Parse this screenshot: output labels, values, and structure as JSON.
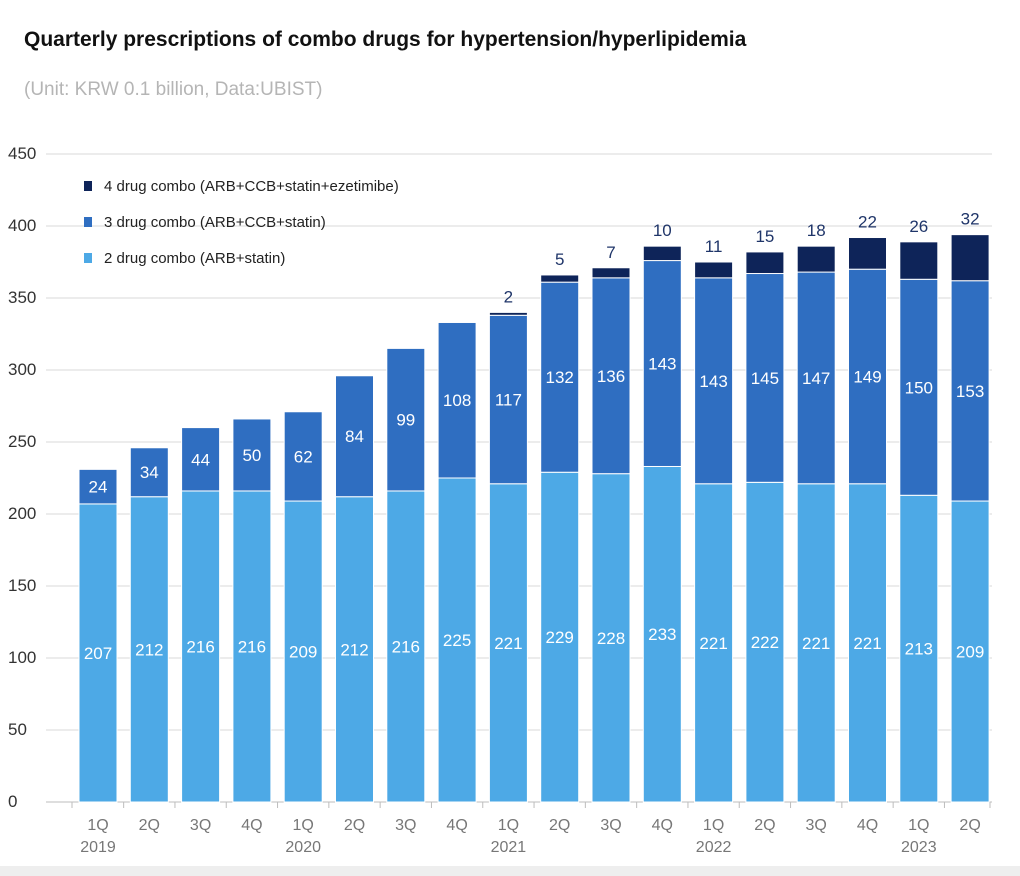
{
  "header": {
    "title": "Quarterly prescriptions of combo drugs for hypertension/hyperlipidemia",
    "subtitle": "(Unit: KRW 0.1 billion, Data:UBIST)"
  },
  "colors": {
    "series_2drug": "#4da9e6",
    "series_3drug": "#2f6ec1",
    "series_4drug": "#0e2459",
    "grid": "#d9d9d9",
    "axis_text": "#333333",
    "label_inside": "#ffffff",
    "label_top": "#1f3569"
  },
  "chart_data": {
    "type": "bar",
    "stacked": true,
    "title": "Quarterly prescriptions of combo drugs for hypertension/hyperlipidemia",
    "subtitle": "(Unit: KRW 0.1 billion, Data:UBIST)",
    "categories": [
      "1Q",
      "2Q",
      "3Q",
      "4Q",
      "1Q",
      "2Q",
      "3Q",
      "4Q",
      "1Q",
      "2Q",
      "3Q",
      "4Q",
      "1Q",
      "2Q",
      "3Q",
      "4Q",
      "1Q",
      "2Q"
    ],
    "year_labels": [
      "2019",
      "",
      "",
      "",
      "2020",
      "",
      "",
      "",
      "2021",
      "",
      "",
      "",
      "2022",
      "",
      "",
      "",
      "2023",
      ""
    ],
    "ylim": [
      0,
      450
    ],
    "yticks": [
      0,
      50,
      100,
      150,
      200,
      250,
      300,
      350,
      400,
      450
    ],
    "grid": true,
    "legend_position": "top-left",
    "series": [
      {
        "name": "2 drug combo (ARB+statin)",
        "values": [
          207,
          212,
          216,
          216,
          209,
          212,
          216,
          225,
          221,
          229,
          228,
          233,
          221,
          222,
          221,
          221,
          213,
          209
        ]
      },
      {
        "name": "3 drug combo (ARB+CCB+statin)",
        "values": [
          24,
          34,
          44,
          50,
          62,
          84,
          99,
          108,
          117,
          132,
          136,
          143,
          143,
          145,
          147,
          149,
          150,
          153
        ]
      },
      {
        "name": "4 drug combo (ARB+CCB+statin+ezetimibe)",
        "values": [
          null,
          null,
          null,
          null,
          null,
          null,
          null,
          null,
          2,
          5,
          7,
          10,
          11,
          15,
          18,
          22,
          26,
          32
        ]
      }
    ]
  }
}
